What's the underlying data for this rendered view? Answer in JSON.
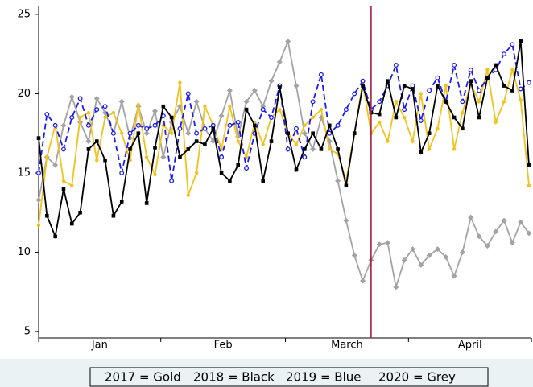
{
  "chart_data": {
    "type": "line",
    "ylim": [
      4.6,
      25.5
    ],
    "yticks": [
      5,
      10,
      15,
      20,
      25
    ],
    "grid": false,
    "x_labels": [
      "Jan",
      "Feb",
      "March",
      "April"
    ],
    "month_bounds": [
      0,
      14.7,
      29.7,
      44.5,
      59.3
    ],
    "vline_x": 40,
    "vline_color": "#a3203f",
    "series": [
      {
        "name": "2017 = Gold",
        "color": "#f2c21d",
        "marker": "circle",
        "dash": false,
        "values": [
          11.7,
          16,
          18,
          14.5,
          14.2,
          18.5,
          18.8,
          15.8,
          18.5,
          18.8,
          17.5,
          15.8,
          19.3,
          16,
          14.9,
          18,
          17.5,
          20.7,
          13.6,
          15,
          19.2,
          18,
          16.5,
          19.2,
          17,
          16,
          18.2,
          16.8,
          18.5,
          19,
          17.5,
          16.8,
          18,
          18.5,
          19,
          16.5,
          16.2,
          14.5,
          17.5,
          20.7,
          17.5,
          18.2,
          17,
          19.5,
          18.5,
          17,
          20,
          16.5,
          17.8,
          20.5,
          16.5,
          18.8,
          20.6,
          19.5,
          21.5,
          18.2,
          19.5,
          21.5,
          19.6,
          14.2
        ]
      },
      {
        "name": "2018 = Black",
        "color": "#000000",
        "marker": "square",
        "dash": false,
        "values": [
          17.2,
          12.3,
          11,
          14,
          11.8,
          12.5,
          16.5,
          17,
          15.8,
          12.3,
          13.2,
          16.5,
          17.5,
          13.1,
          16.6,
          19.2,
          18.5,
          16,
          16.5,
          17,
          16.8,
          17.8,
          15,
          14.5,
          15.5,
          19,
          18,
          14.5,
          17,
          20.4,
          17.5,
          15.2,
          16.5,
          17.5,
          16.5,
          18,
          16.5,
          14.2,
          17.5,
          20.5,
          18.8,
          18.7,
          20.8,
          18.5,
          20.5,
          20.3,
          16.3,
          17.5,
          20.5,
          19.5,
          18.5,
          17.8,
          20.8,
          18.5,
          21,
          21.8,
          20.5,
          20.2,
          23.3,
          15.5
        ]
      },
      {
        "name": "2019 = Blue",
        "color": "#1b1bf0",
        "marker": "open-circle",
        "dash": true,
        "values": [
          15,
          18.7,
          18,
          16.5,
          18.5,
          19.7,
          18,
          19,
          19.2,
          17.5,
          15,
          17.5,
          18,
          17.8,
          18,
          18.6,
          14.5,
          17.8,
          20,
          17.5,
          17.8,
          18,
          16,
          18,
          18.2,
          15.3,
          17.5,
          19,
          18.5,
          20.5,
          16.5,
          17.8,
          16,
          19.5,
          21.2,
          17.5,
          18,
          19,
          20,
          20.8,
          19,
          19.5,
          20.5,
          21.8,
          19,
          20.5,
          18.3,
          20.2,
          21,
          19.5,
          21.8,
          19.5,
          21.5,
          20.2,
          21,
          21.5,
          22.5,
          23.1,
          20.3,
          20.7
        ]
      },
      {
        "name": "2020 = Grey",
        "color": "#a3a3a3",
        "marker": "diamond",
        "dash": false,
        "values": [
          13.3,
          16,
          15.5,
          18,
          19.8,
          18.2,
          17,
          19.7,
          18.8,
          17.5,
          19.5,
          17.2,
          19.2,
          17.5,
          18.9,
          16,
          18.2,
          19.2,
          17.5,
          19.5,
          17.8,
          17,
          18.6,
          20.2,
          17.3,
          19.5,
          20.2,
          19.2,
          20.8,
          22,
          23.3,
          20.5,
          17.5,
          16.5,
          18.5,
          17,
          14.5,
          12,
          9.8,
          8.2,
          9.5,
          10.5,
          10.6,
          7.8,
          9.5,
          10.2,
          9.2,
          9.8,
          10.2,
          9.7,
          8.5,
          10,
          12.2,
          11,
          10.4,
          11.3,
          12,
          10.6,
          11.9,
          11.2
        ]
      }
    ]
  }
}
